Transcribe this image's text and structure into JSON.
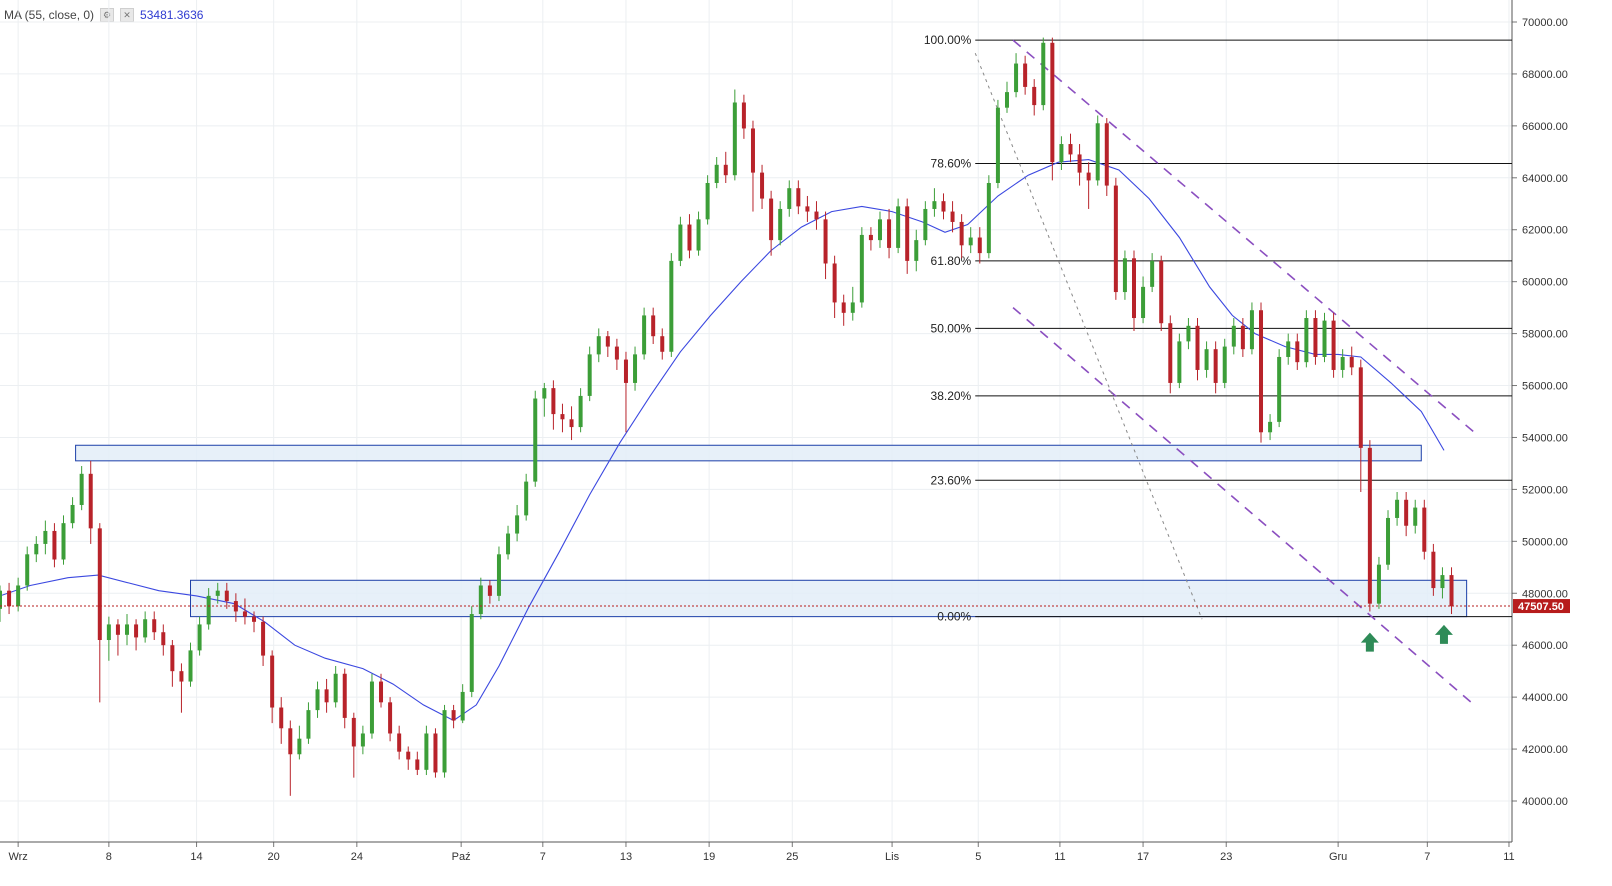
{
  "legend": {
    "label": "MA (55, close, 0)",
    "value": "53481.3636",
    "settings_icon": "gear-icon",
    "close_icon": "close-icon"
  },
  "price_label": "47507.50",
  "colors": {
    "up": "#3c9e38",
    "down": "#b8232a",
    "ma": "#3b48e0",
    "zone_fill": "#e3edf8",
    "zone_stroke": "#1c3fa8",
    "channel": "#8b4fc0",
    "price_tag": "#b71c1c",
    "arrow": "#2e8b57"
  },
  "chart_data": {
    "type": "candlestick",
    "y_axis": {
      "ylim": [
        39700,
        70200
      ],
      "ticks": [
        "40000.00",
        "42000.00",
        "44000.00",
        "46000.00",
        "48000.00",
        "50000.00",
        "52000.00",
        "54000.00",
        "56000.00",
        "58000.00",
        "60000.00",
        "62000.00",
        "64000.00",
        "66000.00",
        "68000.00",
        "70000.00"
      ],
      "grid": true
    },
    "x_axis": {
      "ticks": [
        "Wrz",
        "8",
        "14",
        "20",
        "24",
        "Paź",
        "7",
        "13",
        "19",
        "25",
        "Lis",
        "5",
        "11",
        "17",
        "23",
        "Gru",
        "7",
        "11"
      ],
      "grid": true
    },
    "ma_label": "MA (55, close, 0)",
    "last_price": 47507.5,
    "fib_levels": [
      {
        "label": "100.00%",
        "value": 69300
      },
      {
        "label": "78.60%",
        "value": 64550
      },
      {
        "label": "61.80%",
        "value": 60800
      },
      {
        "label": "50.00%",
        "value": 58200
      },
      {
        "label": "38.20%",
        "value": 55600
      },
      {
        "label": "23.60%",
        "value": 52350
      },
      {
        "label": "0.00%",
        "value": 47100
      }
    ],
    "zones": [
      {
        "x0": 0.05,
        "x1": 0.94,
        "y0": 53100,
        "y1": 53700
      },
      {
        "x0": 0.126,
        "x1": 0.97,
        "y0": 47100,
        "y1": 48500
      }
    ],
    "channel_lines": [
      {
        "x0": 0.67,
        "y0": 69300,
        "x1": 0.975,
        "y1": 54200
      },
      {
        "x0": 0.67,
        "y0": 59000,
        "x1": 0.975,
        "y1": 43700
      },
      {
        "x0": 0.645,
        "y0": 68800,
        "x1": 0.795,
        "y1": 47000
      }
    ],
    "arrows": [
      {
        "x": 0.906,
        "y": 46100
      },
      {
        "x": 0.955,
        "y": 46400
      }
    ],
    "ma_points": [
      [
        0.0,
        47900
      ],
      [
        0.02,
        48300
      ],
      [
        0.045,
        48600
      ],
      [
        0.065,
        48700
      ],
      [
        0.085,
        48400
      ],
      [
        0.105,
        48100
      ],
      [
        0.13,
        47900
      ],
      [
        0.155,
        47600
      ],
      [
        0.175,
        46900
      ],
      [
        0.195,
        46000
      ],
      [
        0.215,
        45500
      ],
      [
        0.24,
        45100
      ],
      [
        0.26,
        44500
      ],
      [
        0.28,
        43700
      ],
      [
        0.3,
        43100
      ],
      [
        0.315,
        43700
      ],
      [
        0.33,
        45200
      ],
      [
        0.35,
        47500
      ],
      [
        0.37,
        49600
      ],
      [
        0.39,
        51800
      ],
      [
        0.41,
        53800
      ],
      [
        0.43,
        55600
      ],
      [
        0.45,
        57300
      ],
      [
        0.47,
        58700
      ],
      [
        0.49,
        60000
      ],
      [
        0.51,
        61200
      ],
      [
        0.53,
        62100
      ],
      [
        0.55,
        62700
      ],
      [
        0.57,
        62900
      ],
      [
        0.59,
        62700
      ],
      [
        0.61,
        62300
      ],
      [
        0.625,
        61900
      ],
      [
        0.64,
        62200
      ],
      [
        0.66,
        63300
      ],
      [
        0.68,
        64100
      ],
      [
        0.7,
        64600
      ],
      [
        0.72,
        64700
      ],
      [
        0.74,
        64300
      ],
      [
        0.76,
        63200
      ],
      [
        0.78,
        61700
      ],
      [
        0.8,
        59800
      ],
      [
        0.815,
        58700
      ],
      [
        0.83,
        58000
      ],
      [
        0.85,
        57500
      ],
      [
        0.87,
        57200
      ],
      [
        0.885,
        57200
      ],
      [
        0.9,
        57100
      ],
      [
        0.92,
        56100
      ],
      [
        0.94,
        55000
      ],
      [
        0.955,
        53500
      ]
    ],
    "candles": [
      [
        0.0,
        47400,
        48100,
        46900,
        48300
      ],
      [
        0.006,
        48100,
        47500,
        47200,
        48400
      ],
      [
        0.012,
        47500,
        48300,
        47300,
        48600
      ],
      [
        0.018,
        48300,
        49500,
        48100,
        49800
      ],
      [
        0.024,
        49500,
        49900,
        49200,
        50200
      ],
      [
        0.03,
        49900,
        50400,
        49500,
        50800
      ],
      [
        0.036,
        50400,
        49300,
        49000,
        50700
      ],
      [
        0.042,
        49300,
        50700,
        49100,
        51000
      ],
      [
        0.048,
        50700,
        51400,
        50500,
        51700
      ],
      [
        0.054,
        51400,
        52600,
        51200,
        52900
      ],
      [
        0.06,
        52600,
        50500,
        49900,
        53100
      ],
      [
        0.066,
        50500,
        46200,
        43800,
        50700
      ],
      [
        0.072,
        46200,
        46800,
        45400,
        47100
      ],
      [
        0.078,
        46800,
        46400,
        45600,
        47000
      ],
      [
        0.084,
        46400,
        46800,
        46000,
        47200
      ],
      [
        0.09,
        46800,
        46300,
        45800,
        47000
      ],
      [
        0.096,
        46300,
        47000,
        46100,
        47300
      ],
      [
        0.102,
        47000,
        46500,
        46200,
        47300
      ],
      [
        0.108,
        46500,
        46000,
        45600,
        46800
      ],
      [
        0.114,
        46000,
        45000,
        44400,
        46200
      ],
      [
        0.12,
        45000,
        44600,
        43400,
        45300
      ],
      [
        0.126,
        44600,
        45800,
        44400,
        46100
      ],
      [
        0.132,
        45800,
        46800,
        45600,
        47100
      ],
      [
        0.138,
        46800,
        47900,
        46600,
        48200
      ],
      [
        0.144,
        47900,
        48100,
        47600,
        48400
      ],
      [
        0.15,
        48100,
        47700,
        47400,
        48400
      ],
      [
        0.156,
        47700,
        47300,
        46900,
        48000
      ],
      [
        0.162,
        47300,
        47100,
        46800,
        47800
      ],
      [
        0.168,
        47100,
        46900,
        46500,
        47300
      ],
      [
        0.174,
        46900,
        45600,
        45200,
        47100
      ],
      [
        0.18,
        45600,
        43600,
        43000,
        45800
      ],
      [
        0.186,
        43600,
        42800,
        42200,
        44000
      ],
      [
        0.192,
        42800,
        41800,
        40200,
        43100
      ],
      [
        0.198,
        41800,
        42400,
        41600,
        42900
      ],
      [
        0.204,
        42400,
        43500,
        42200,
        43800
      ],
      [
        0.21,
        43500,
        44300,
        43200,
        44600
      ],
      [
        0.216,
        44300,
        43800,
        43400,
        44700
      ],
      [
        0.222,
        43800,
        44900,
        43600,
        45200
      ],
      [
        0.228,
        44900,
        43200,
        42800,
        45100
      ],
      [
        0.234,
        43200,
        42100,
        40900,
        43400
      ],
      [
        0.24,
        42100,
        42600,
        41800,
        42900
      ],
      [
        0.246,
        42600,
        44600,
        42400,
        44900
      ],
      [
        0.252,
        44600,
        43800,
        43600,
        44900
      ],
      [
        0.258,
        43800,
        42600,
        42300,
        44000
      ],
      [
        0.264,
        42600,
        41900,
        41600,
        42900
      ],
      [
        0.27,
        41900,
        41600,
        41200,
        42100
      ],
      [
        0.276,
        41600,
        41200,
        41000,
        41900
      ],
      [
        0.282,
        41200,
        42600,
        41000,
        42900
      ],
      [
        0.288,
        42600,
        41100,
        40900,
        42800
      ],
      [
        0.294,
        41100,
        43500,
        40900,
        43700
      ],
      [
        0.3,
        43500,
        43100,
        42800,
        43700
      ],
      [
        0.306,
        43100,
        44200,
        43000,
        44500
      ],
      [
        0.312,
        44200,
        47200,
        44000,
        47500
      ],
      [
        0.318,
        47200,
        48300,
        47000,
        48600
      ],
      [
        0.324,
        48300,
        47900,
        47600,
        48500
      ],
      [
        0.33,
        47900,
        49500,
        47700,
        49800
      ],
      [
        0.336,
        49500,
        50300,
        49300,
        50600
      ],
      [
        0.342,
        50300,
        51000,
        50000,
        51400
      ],
      [
        0.348,
        51000,
        52300,
        50800,
        52600
      ],
      [
        0.354,
        52300,
        55500,
        52100,
        55800
      ],
      [
        0.36,
        55500,
        55900,
        54800,
        56100
      ],
      [
        0.366,
        55900,
        54900,
        54300,
        56200
      ],
      [
        0.372,
        54900,
        54700,
        54200,
        55300
      ],
      [
        0.378,
        54700,
        54400,
        53900,
        55200
      ],
      [
        0.384,
        54400,
        55600,
        54200,
        55900
      ],
      [
        0.39,
        55600,
        57200,
        55400,
        57500
      ],
      [
        0.396,
        57200,
        57900,
        56900,
        58200
      ],
      [
        0.402,
        57900,
        57500,
        57100,
        58100
      ],
      [
        0.408,
        57500,
        57000,
        56600,
        57800
      ],
      [
        0.414,
        57000,
        56100,
        54200,
        57300
      ],
      [
        0.42,
        56100,
        57200,
        55800,
        57500
      ],
      [
        0.426,
        57200,
        58700,
        57000,
        59000
      ],
      [
        0.432,
        58700,
        57900,
        57600,
        59000
      ],
      [
        0.438,
        57900,
        57300,
        57000,
        58200
      ],
      [
        0.444,
        57300,
        60800,
        57100,
        61100
      ],
      [
        0.45,
        60800,
        62200,
        60600,
        62500
      ],
      [
        0.456,
        62200,
        61200,
        60900,
        62600
      ],
      [
        0.462,
        61200,
        62400,
        61000,
        62700
      ],
      [
        0.468,
        62400,
        63800,
        62200,
        64100
      ],
      [
        0.474,
        63800,
        64500,
        63600,
        64800
      ],
      [
        0.48,
        64500,
        64100,
        63800,
        65000
      ],
      [
        0.486,
        64100,
        66900,
        63900,
        67400
      ],
      [
        0.492,
        66900,
        65900,
        65500,
        67200
      ],
      [
        0.498,
        65900,
        64200,
        62700,
        66200
      ],
      [
        0.504,
        64200,
        63200,
        62800,
        64500
      ],
      [
        0.51,
        63200,
        61600,
        61000,
        63500
      ],
      [
        0.516,
        61600,
        62800,
        61400,
        63100
      ],
      [
        0.522,
        62800,
        63600,
        62500,
        63900
      ],
      [
        0.528,
        63600,
        62900,
        62600,
        63900
      ],
      [
        0.534,
        62900,
        62700,
        62300,
        63300
      ],
      [
        0.54,
        62700,
        62400,
        62000,
        63100
      ],
      [
        0.546,
        62400,
        60700,
        60100,
        62700
      ],
      [
        0.552,
        60700,
        59200,
        58600,
        61000
      ],
      [
        0.558,
        59200,
        58800,
        58300,
        59500
      ],
      [
        0.564,
        58800,
        59200,
        58500,
        59800
      ],
      [
        0.57,
        59200,
        61800,
        59000,
        62100
      ],
      [
        0.576,
        61800,
        61600,
        61200,
        62100
      ],
      [
        0.582,
        61600,
        62400,
        61300,
        62700
      ],
      [
        0.588,
        62400,
        61300,
        60900,
        62800
      ],
      [
        0.594,
        61300,
        62900,
        61100,
        63200
      ],
      [
        0.6,
        62900,
        60800,
        60300,
        63200
      ],
      [
        0.606,
        60800,
        61600,
        60400,
        62000
      ],
      [
        0.612,
        61600,
        62800,
        61400,
        63100
      ],
      [
        0.618,
        62800,
        63100,
        62500,
        63600
      ],
      [
        0.624,
        63100,
        62700,
        62400,
        63400
      ],
      [
        0.63,
        62700,
        62300,
        61900,
        63100
      ],
      [
        0.636,
        62300,
        61400,
        60900,
        62600
      ],
      [
        0.642,
        61400,
        61700,
        61100,
        62100
      ],
      [
        0.648,
        61700,
        61100,
        60700,
        62100
      ],
      [
        0.654,
        61100,
        63800,
        60900,
        64100
      ],
      [
        0.66,
        63800,
        66700,
        63600,
        67000
      ],
      [
        0.666,
        66700,
        67300,
        66500,
        67700
      ],
      [
        0.672,
        67300,
        68400,
        67100,
        68800
      ],
      [
        0.678,
        68400,
        67500,
        67200,
        68700
      ],
      [
        0.684,
        67500,
        66800,
        66400,
        67800
      ],
      [
        0.69,
        66800,
        69200,
        66600,
        69400
      ],
      [
        0.696,
        69200,
        64600,
        63900,
        69400
      ],
      [
        0.702,
        64600,
        65300,
        64300,
        65600
      ],
      [
        0.708,
        65300,
        64900,
        64600,
        65700
      ],
      [
        0.714,
        64900,
        64200,
        63700,
        65300
      ],
      [
        0.72,
        64200,
        63900,
        62800,
        64600
      ],
      [
        0.726,
        63900,
        66100,
        63700,
        66400
      ],
      [
        0.732,
        66100,
        63700,
        63300,
        66300
      ],
      [
        0.738,
        63700,
        59600,
        59300,
        64000
      ],
      [
        0.744,
        59600,
        60900,
        59300,
        61200
      ],
      [
        0.75,
        60900,
        58600,
        58100,
        61200
      ],
      [
        0.756,
        58600,
        59800,
        58400,
        60200
      ],
      [
        0.762,
        59800,
        60800,
        59600,
        61100
      ],
      [
        0.768,
        60800,
        58400,
        58100,
        61000
      ],
      [
        0.774,
        58400,
        56100,
        55700,
        58700
      ],
      [
        0.78,
        56100,
        57700,
        55900,
        58000
      ],
      [
        0.786,
        57700,
        58300,
        57400,
        58600
      ],
      [
        0.792,
        58300,
        56600,
        56200,
        58600
      ],
      [
        0.798,
        56600,
        57400,
        56300,
        57700
      ],
      [
        0.804,
        57400,
        56100,
        55700,
        57700
      ],
      [
        0.81,
        56100,
        57500,
        55900,
        57800
      ],
      [
        0.816,
        57500,
        58300,
        57200,
        58600
      ],
      [
        0.822,
        58300,
        57400,
        57100,
        58600
      ],
      [
        0.828,
        57400,
        58900,
        57200,
        59200
      ],
      [
        0.834,
        58900,
        54200,
        53800,
        59200
      ],
      [
        0.84,
        54200,
        54600,
        53900,
        54900
      ],
      [
        0.846,
        54600,
        57100,
        54400,
        57400
      ],
      [
        0.852,
        57100,
        57700,
        56800,
        58000
      ],
      [
        0.858,
        57700,
        56900,
        56600,
        58000
      ],
      [
        0.864,
        56900,
        58600,
        56700,
        58900
      ],
      [
        0.87,
        58600,
        57100,
        56800,
        58900
      ],
      [
        0.876,
        57100,
        58500,
        56900,
        58800
      ],
      [
        0.882,
        58500,
        56600,
        56300,
        58800
      ],
      [
        0.888,
        56600,
        57100,
        56300,
        57400
      ],
      [
        0.894,
        57100,
        56700,
        56400,
        57500
      ],
      [
        0.9,
        56700,
        53600,
        51900,
        57000
      ],
      [
        0.906,
        53600,
        47600,
        47300,
        53900
      ],
      [
        0.912,
        47600,
        49100,
        47400,
        49400
      ],
      [
        0.918,
        49100,
        50900,
        48900,
        51200
      ],
      [
        0.924,
        50900,
        51600,
        50600,
        51900
      ],
      [
        0.93,
        51600,
        50600,
        50200,
        51900
      ],
      [
        0.936,
        50600,
        51300,
        50300,
        51600
      ],
      [
        0.942,
        51300,
        49600,
        49300,
        51600
      ],
      [
        0.948,
        49600,
        48200,
        47900,
        49900
      ],
      [
        0.954,
        48200,
        48700,
        47800,
        49000
      ],
      [
        0.96,
        48700,
        47500,
        47200,
        49000
      ]
    ]
  }
}
